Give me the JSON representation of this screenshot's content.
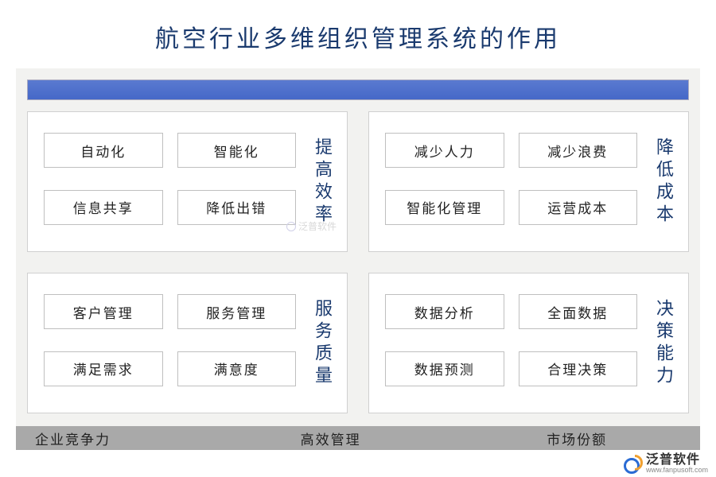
{
  "title": "航空行业多维组织管理系统的作用",
  "title_color": "#1a3a6e",
  "title_fontsize": 30,
  "background_color": "#ffffff",
  "main_bg": "#f2f2f0",
  "top_bar": {
    "gradient_from": "#5a7ad0",
    "gradient_to": "#4568c8",
    "height": 26
  },
  "panels": [
    {
      "label": "提高效率",
      "items": [
        "自动化",
        "智能化",
        "信息共享",
        "降低出错"
      ]
    },
    {
      "label": "降低成本",
      "items": [
        "减少人力",
        "减少浪费",
        "智能化管理",
        "运营成本"
      ]
    },
    {
      "label": "服务质量",
      "items": [
        "客户管理",
        "服务管理",
        "满足需求",
        "满意度"
      ]
    },
    {
      "label": "决策能力",
      "items": [
        "数据分析",
        "全面数据",
        "数据预测",
        "合理决策"
      ]
    }
  ],
  "panel_style": {
    "bg": "#ffffff",
    "border": "#d0d0d0",
    "item_border": "#bfbfbf",
    "item_fontsize": 17,
    "label_fontsize": 22,
    "label_color": "#1a3a6e"
  },
  "footer": {
    "bg": "#a9a9a9",
    "items": [
      "企业竞争力",
      "高效管理",
      "市场份额"
    ],
    "fontsize": 17
  },
  "watermark": {
    "brand_cn": "泛普软件",
    "brand_url": "www.fanpusoft.com",
    "faint_text": "泛普软件"
  }
}
